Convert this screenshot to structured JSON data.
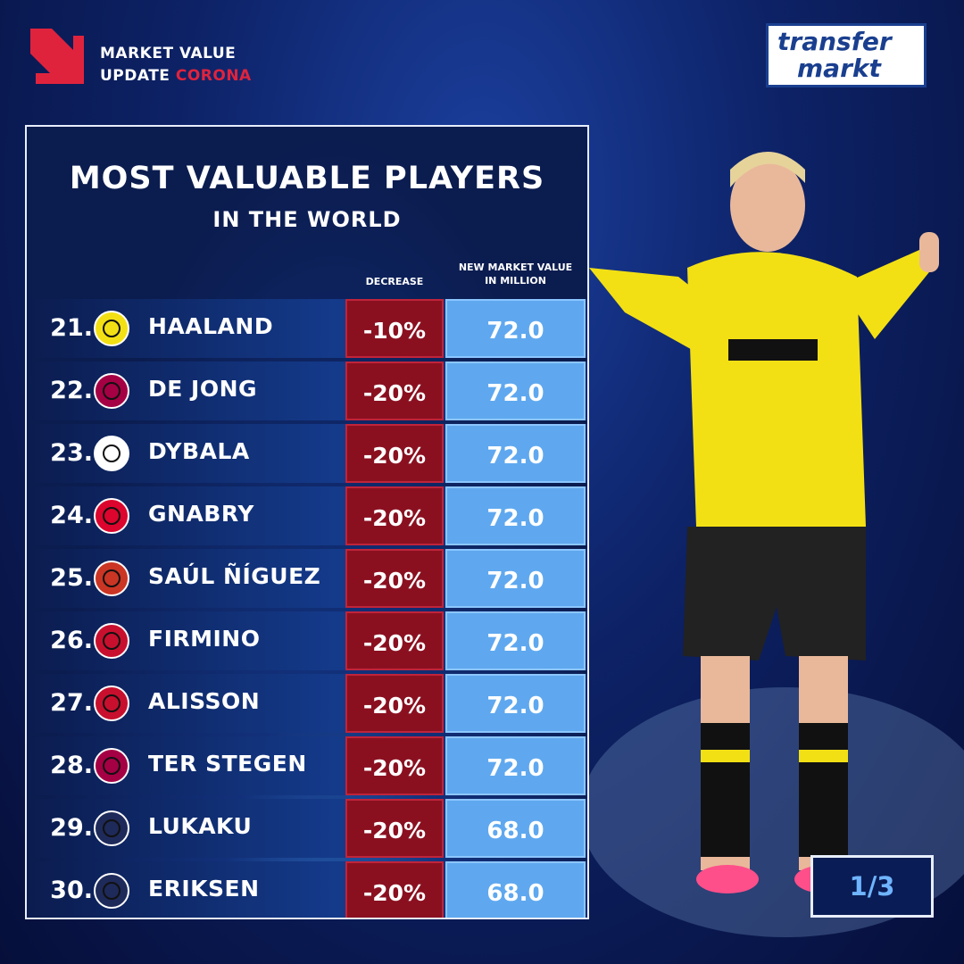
{
  "header": {
    "line1": "MARKET VALUE",
    "line2": "UPDATE",
    "highlight": "CORONA"
  },
  "logo": {
    "line1": "transfer",
    "line2": "markt"
  },
  "table": {
    "title": "MOST VALUABLE PLAYERS",
    "subtitle": "IN THE WORLD",
    "columns": [
      "DECREASE",
      "NEW MARKET VALUE IN MILLION"
    ],
    "rows": [
      [
        "21.",
        "HAALAND",
        "-10%",
        "72.0"
      ],
      [
        "22.",
        "DE JONG",
        "-20%",
        "72.0"
      ],
      [
        "23.",
        "DYBALA",
        "-20%",
        "72.0"
      ],
      [
        "24.",
        "GNABRY",
        "-20%",
        "72.0"
      ],
      [
        "25.",
        "SAÚL ÑÍGUEZ",
        "-20%",
        "72.0"
      ],
      [
        "26.",
        "FIRMINO",
        "-20%",
        "72.0"
      ],
      [
        "27.",
        "ALISSON",
        "-20%",
        "72.0"
      ],
      [
        "28.",
        "TER STEGEN",
        "-20%",
        "72.0"
      ],
      [
        "29.",
        "LUKAKU",
        "-20%",
        "68.0"
      ],
      [
        "30.",
        "ERIKSEN",
        "-20%",
        "68.0"
      ]
    ]
  },
  "pager": "1/3"
}
